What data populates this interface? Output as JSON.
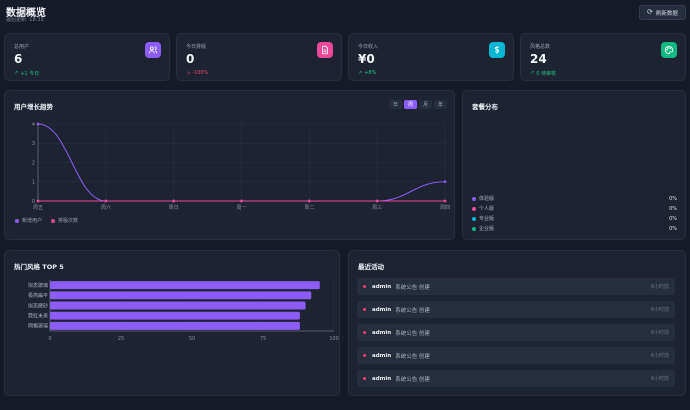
{
  "header": {
    "title": "数据概览",
    "last_updated": "最后更新: 18:33",
    "refresh_label": "刷新数据"
  },
  "stats": [
    {
      "label": "总用户",
      "value": "6",
      "change": "+1 今日",
      "trend": "up",
      "icon": "users-icon",
      "color": "#8b5cf6"
    },
    {
      "label": "今日排版",
      "value": "0",
      "change": "-100%",
      "trend": "down",
      "icon": "document-icon",
      "color": "#ec4899"
    },
    {
      "label": "今日收入",
      "value": "¥0",
      "change": "+8%",
      "trend": "up",
      "icon": "dollar-icon",
      "color": "#06b6d4"
    },
    {
      "label": "风格总数",
      "value": "24",
      "change": "0 待审核",
      "trend": "up",
      "icon": "palette-icon",
      "color": "#10b981"
    }
  ],
  "growth": {
    "title": "用户增长趋势",
    "periods": [
      "日",
      "周",
      "月",
      "年"
    ],
    "active_period": "周"
  },
  "chart_data": [
    {
      "type": "line",
      "title": "用户增长趋势",
      "categories": [
        "周五",
        "周六",
        "周日",
        "周一",
        "周二",
        "周三",
        "周四"
      ],
      "series": [
        {
          "name": "新增用户",
          "values": [
            4,
            0,
            0,
            0,
            0,
            0,
            1
          ],
          "color": "#8b5cf6"
        },
        {
          "name": "排版次数",
          "values": [
            0,
            0,
            0,
            0,
            0,
            0,
            0
          ],
          "color": "#ec4899"
        }
      ],
      "ylim": [
        0,
        4
      ],
      "yticks": [
        0,
        1,
        2,
        3,
        4
      ],
      "grid": true,
      "legend": "bottom-left"
    },
    {
      "type": "bar",
      "orientation": "horizontal",
      "title": "热门风格 TOP 5",
      "categories": [
        "拟态玻璃",
        "极简扁平",
        "拟态磨砂",
        "霓虹未来",
        "网格玻璃"
      ],
      "values": [
        95,
        92,
        90,
        88,
        88
      ],
      "xlim": [
        0,
        100
      ],
      "xticks": [
        0,
        25,
        50,
        75,
        100
      ],
      "color": "#8b5cf6"
    }
  ],
  "packages": {
    "title": "套餐分布",
    "items": [
      {
        "name": "体验版",
        "pct": "0%",
        "color": "#8b5cf6"
      },
      {
        "name": "个人版",
        "pct": "0%",
        "color": "#ec4899"
      },
      {
        "name": "专业版",
        "pct": "0%",
        "color": "#06b6d4"
      },
      {
        "name": "企业版",
        "pct": "0%",
        "color": "#10b981"
      }
    ]
  },
  "top_styles": {
    "title": "热门风格 TOP 5"
  },
  "activity": {
    "title": "最近活动",
    "items": [
      {
        "user": "admin",
        "text": "系统公告 创建",
        "time": "6小时前"
      },
      {
        "user": "admin",
        "text": "系统公告 创建",
        "time": "6小时前"
      },
      {
        "user": "admin",
        "text": "系统公告 创建",
        "time": "6小时前"
      },
      {
        "user": "admin",
        "text": "系统公告 创建",
        "time": "6小时前"
      },
      {
        "user": "admin",
        "text": "系统公告 创建",
        "time": "6小时前"
      }
    ]
  }
}
